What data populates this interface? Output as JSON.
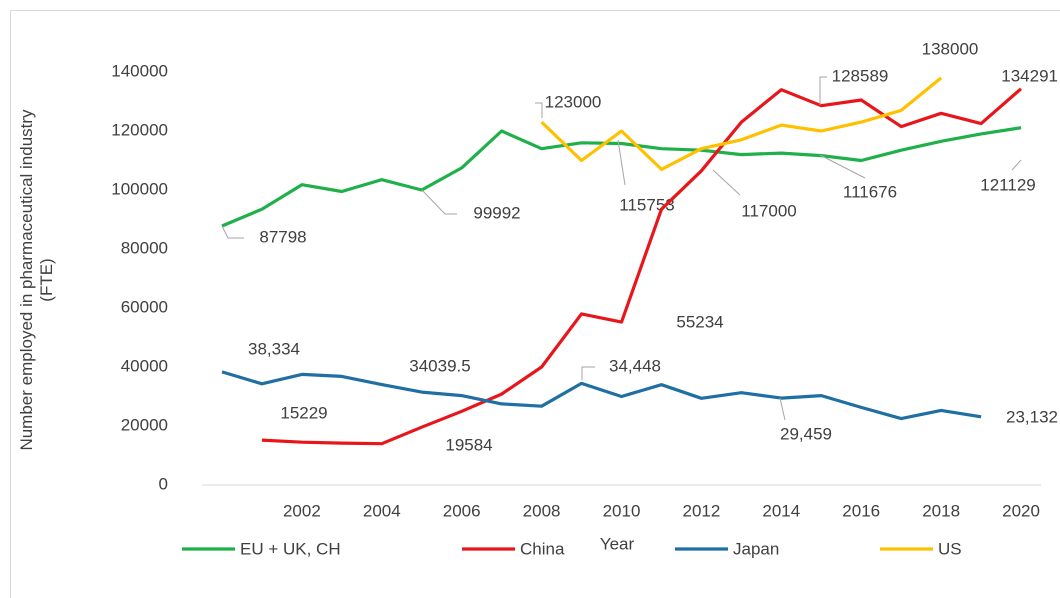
{
  "chart_data": {
    "type": "line",
    "x_label": "Year",
    "y_label": "Number employed in pharmaceutical industry (FTE)",
    "xlim": [
      1999.5,
      2020.5
    ],
    "xticks": [
      2002,
      2004,
      2006,
      2008,
      2010,
      2012,
      2014,
      2016,
      2018,
      2020
    ],
    "ylim": [
      0,
      140000
    ],
    "yticks": [
      0,
      20000,
      40000,
      60000,
      80000,
      100000,
      120000,
      140000
    ],
    "grid": false,
    "legend": "bottom",
    "series": [
      {
        "name": "EU + UK, CH",
        "color": "#1fb04a",
        "x": [
          2000,
          2001,
          2002,
          2003,
          2004,
          2005,
          2006,
          2007,
          2008,
          2009,
          2010,
          2011,
          2012,
          2013,
          2014,
          2015,
          2016,
          2017,
          2018,
          2019,
          2020
        ],
        "values": [
          87798,
          93500,
          101800,
          99500,
          103500,
          99992,
          107500,
          120000,
          114000,
          116000,
          115753,
          114000,
          113500,
          112000,
          112500,
          111676,
          110000,
          113500,
          116500,
          119000,
          121129
        ],
        "value_labels": [
          "87798",
          null,
          null,
          null,
          null,
          "99992",
          null,
          null,
          null,
          null,
          "115753",
          null,
          null,
          null,
          null,
          "111676",
          null,
          null,
          null,
          null,
          "121129"
        ]
      },
      {
        "name": "China",
        "color": "#e8161b",
        "x": [
          2001,
          2002,
          2003,
          2004,
          2005,
          2006,
          2007,
          2008,
          2009,
          2010,
          2011,
          2012,
          2013,
          2014,
          2015,
          2016,
          2017,
          2018,
          2019,
          2020
        ],
        "values": [
          15229,
          14500,
          14200,
          14000,
          19584,
          25000,
          30800,
          40000,
          58000,
          55234,
          93500,
          106500,
          123000,
          134000,
          128589,
          130500,
          121500,
          126000,
          122500,
          134291
        ],
        "value_labels": [
          "15229",
          null,
          null,
          null,
          "19584",
          null,
          null,
          null,
          null,
          "55234",
          null,
          null,
          null,
          null,
          "128589",
          null,
          null,
          null,
          null,
          "134291"
        ]
      },
      {
        "name": "Japan",
        "color": "#1f6fa3",
        "x": [
          2000,
          2001,
          2002,
          2003,
          2004,
          2005,
          2006,
          2007,
          2008,
          2009,
          2010,
          2011,
          2012,
          2013,
          2014,
          2015,
          2016,
          2017,
          2018,
          2019
        ],
        "values": [
          38334,
          34300,
          37500,
          36800,
          34039.5,
          31500,
          30300,
          27500,
          26700,
          34448,
          30000,
          34000,
          29400,
          31300,
          29459,
          30300,
          26300,
          22500,
          25300,
          23132
        ],
        "value_labels": [
          "38,334",
          null,
          null,
          null,
          "34039.5",
          null,
          null,
          null,
          null,
          "34,448",
          null,
          null,
          null,
          null,
          "29,459",
          null,
          null,
          null,
          null,
          "23,132"
        ]
      },
      {
        "name": "US",
        "color": "#ffc000",
        "x": [
          2008,
          2009,
          2010,
          2011,
          2012,
          2013,
          2014,
          2015,
          2016,
          2017,
          2018
        ],
        "values": [
          123000,
          110000,
          120000,
          107000,
          114000,
          117000,
          122000,
          120000,
          123000,
          127000,
          138000
        ],
        "value_labels": [
          "123000",
          null,
          null,
          null,
          null,
          "117000",
          null,
          null,
          null,
          null,
          "138000"
        ]
      }
    ]
  }
}
